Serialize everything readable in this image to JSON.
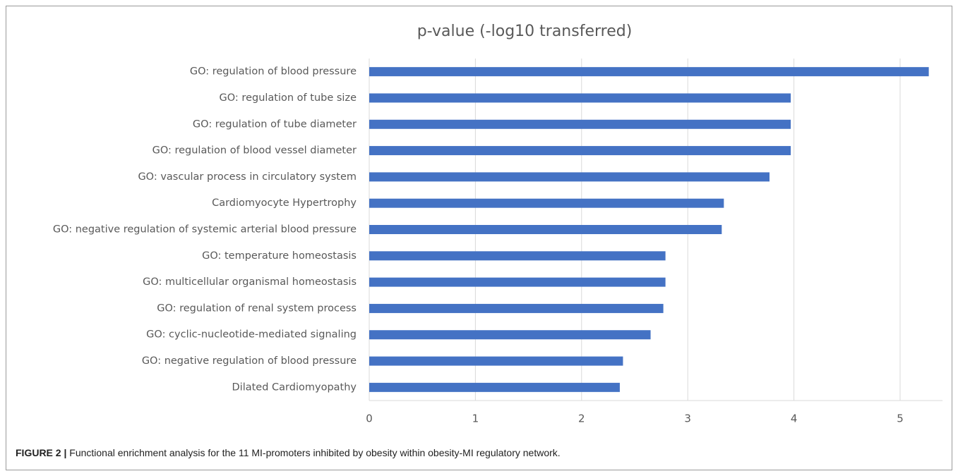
{
  "chart_data": {
    "type": "barh",
    "title": "p-value (-log10 transferred)",
    "categories": [
      "GO: regulation of blood pressure",
      "GO: regulation of tube size",
      "GO: regulation of tube diameter",
      "GO: regulation of blood vessel diameter",
      "GO: vascular process in circulatory system",
      "Cardiomyocyte Hypertrophy",
      "GO: negative regulation of systemic arterial blood pressure",
      "GO: temperature homeostasis",
      "GO: multicellular organismal homeostasis",
      "GO: regulation of renal system process",
      "GO: cyclic-nucleotide-mediated signaling",
      "GO: negative regulation of blood pressure",
      "Dilated Cardiomyopathy"
    ],
    "values": [
      5.27,
      3.97,
      3.97,
      3.97,
      3.77,
      3.34,
      3.32,
      2.79,
      2.79,
      2.77,
      2.65,
      2.39,
      2.36
    ],
    "color": "#4472c4",
    "xlim": [
      0,
      5.4
    ],
    "xticks": [
      0,
      1,
      2,
      3,
      4,
      5
    ],
    "grid": true
  },
  "caption": {
    "label": "FIGURE 2 |",
    "text": "Functional enrichment analysis for the 11 MI-promoters inhibited by obesity within obesity-MI regulatory network."
  }
}
